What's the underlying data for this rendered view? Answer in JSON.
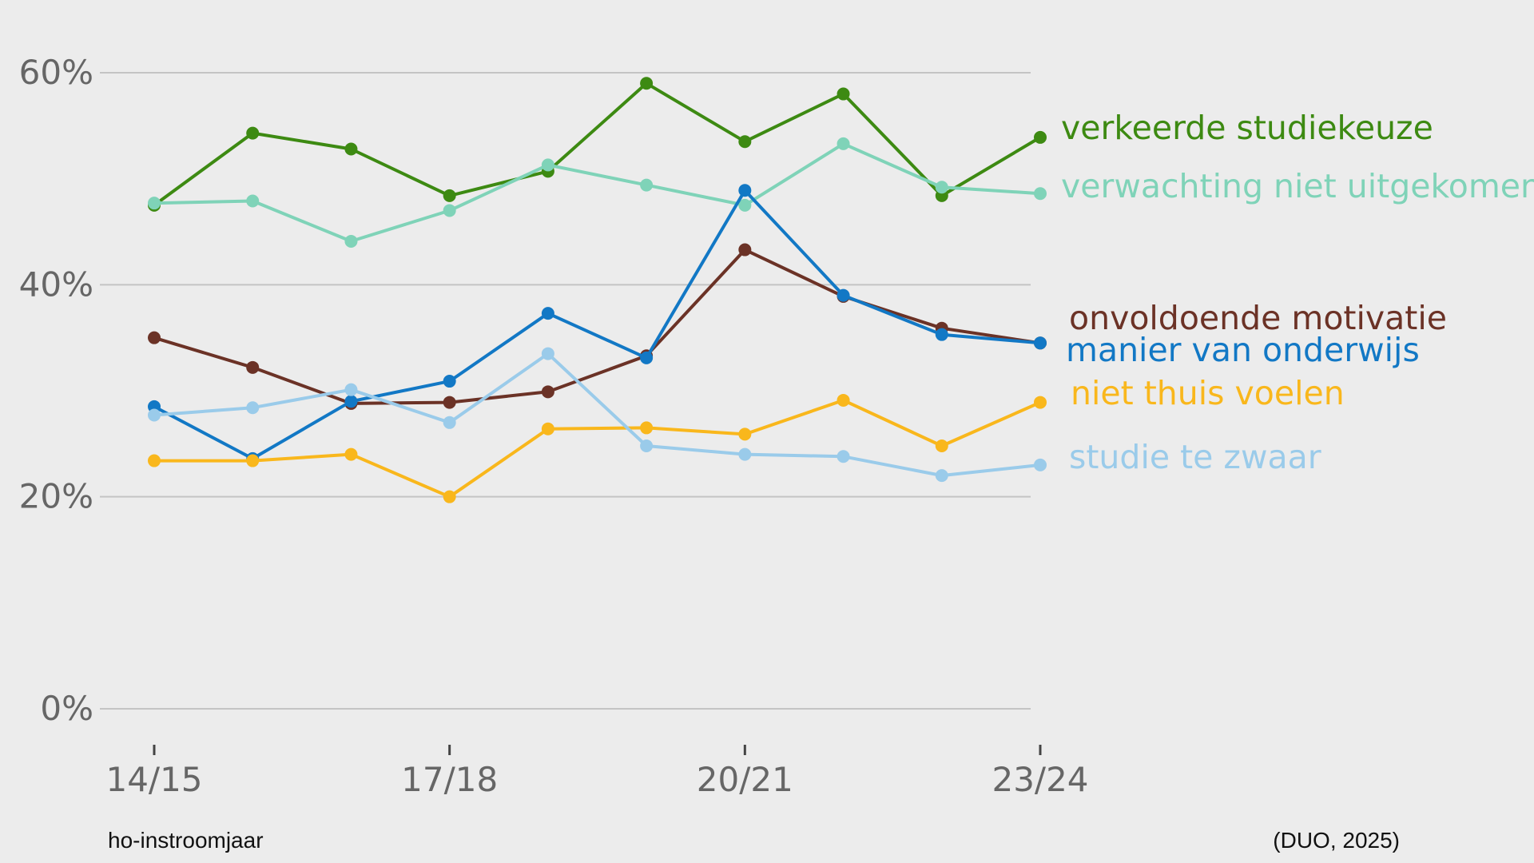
{
  "chart_data": {
    "type": "line",
    "x": [
      "14/15",
      "15/16",
      "16/17",
      "17/18",
      "18/19",
      "19/20",
      "20/21",
      "21/22",
      "22/23",
      "23/24"
    ],
    "x_tick_labels": [
      "14/15",
      "17/18",
      "20/21",
      "23/24"
    ],
    "y_ticks": [
      0,
      20,
      40,
      60
    ],
    "y_tick_labels": [
      "0%",
      "20%",
      "40%",
      "60%"
    ],
    "ylim": [
      0,
      60
    ],
    "grid": true,
    "legend": "right, at line ends",
    "xlabel": "ho-instroomjaar",
    "source": "(DUO, 2025)",
    "series": [
      {
        "name": "verkeerde studiekeuze",
        "color": "#3d8a12",
        "values": [
          47.5,
          54.3,
          52.8,
          48.4,
          50.7,
          59,
          53.5,
          58,
          48.4,
          53.9
        ]
      },
      {
        "name": "verwachting niet uitgekomen",
        "color": "#7fd3b8",
        "values": [
          47.7,
          47.9,
          44.1,
          47,
          51.3,
          49.4,
          47.5,
          53.3,
          49.2,
          48.6
        ]
      },
      {
        "name": "onvoldoende motivatie",
        "color": "#6b3226",
        "values": [
          35,
          32.2,
          28.8,
          28.9,
          29.9,
          33.3,
          43.3,
          38.9,
          35.9,
          34.5
        ]
      },
      {
        "name": "manier van onderwijs",
        "color": "#1278c5",
        "values": [
          28.5,
          23.6,
          29,
          30.9,
          37.3,
          33.1,
          48.9,
          39,
          35.3,
          34.5
        ]
      },
      {
        "name": "niet thuis voelen",
        "color": "#f9b71c",
        "values": [
          23.4,
          23.4,
          24,
          20,
          26.4,
          26.5,
          25.9,
          29.1,
          24.8,
          28.9
        ]
      },
      {
        "name": "studie te zwaar",
        "color": "#9acbea",
        "values": [
          27.7,
          28.4,
          30.1,
          27,
          33.5,
          24.8,
          24,
          23.8,
          22,
          23
        ]
      }
    ]
  }
}
